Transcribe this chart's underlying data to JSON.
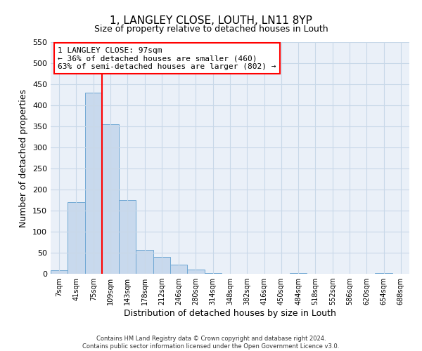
{
  "title": "1, LANGLEY CLOSE, LOUTH, LN11 8YP",
  "subtitle": "Size of property relative to detached houses in Louth",
  "xlabel": "Distribution of detached houses by size in Louth",
  "ylabel": "Number of detached properties",
  "bar_color": "#c8d9ed",
  "bar_edge_color": "#6fa8d4",
  "categories": [
    "7sqm",
    "41sqm",
    "75sqm",
    "109sqm",
    "143sqm",
    "178sqm",
    "212sqm",
    "246sqm",
    "280sqm",
    "314sqm",
    "348sqm",
    "382sqm",
    "416sqm",
    "450sqm",
    "484sqm",
    "518sqm",
    "552sqm",
    "586sqm",
    "620sqm",
    "654sqm",
    "688sqm"
  ],
  "values": [
    8,
    170,
    430,
    355,
    175,
    57,
    40,
    22,
    10,
    2,
    0,
    0,
    0,
    0,
    1,
    0,
    0,
    0,
    0,
    1,
    0
  ],
  "ylim": [
    0,
    550
  ],
  "yticks": [
    0,
    50,
    100,
    150,
    200,
    250,
    300,
    350,
    400,
    450,
    500,
    550
  ],
  "vline_x": 2.5,
  "annotation_title": "1 LANGLEY CLOSE: 97sqm",
  "annotation_line1": "← 36% of detached houses are smaller (460)",
  "annotation_line2": "63% of semi-detached houses are larger (802) →",
  "footer1": "Contains HM Land Registry data © Crown copyright and database right 2024.",
  "footer2": "Contains public sector information licensed under the Open Government Licence v3.0.",
  "background_color": "#eaf0f8",
  "plot_background": "#ffffff",
  "grid_color": "#c8d8e8"
}
